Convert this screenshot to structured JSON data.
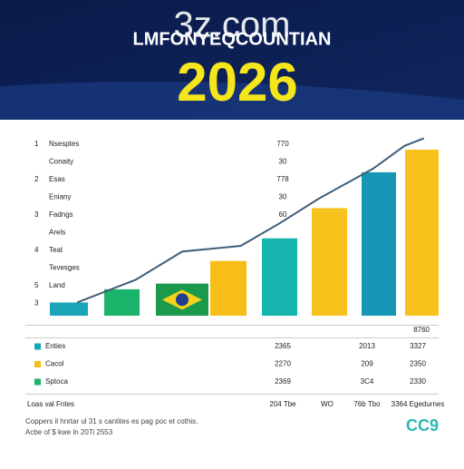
{
  "header": {
    "logo": "3z.com",
    "title": "LMFONYEQCOUNTIAN",
    "year": "2026"
  },
  "chart_data": {
    "type": "bar",
    "categories": [
      null,
      null,
      null,
      null,
      null,
      null,
      null,
      null
    ],
    "values": [
      7,
      14,
      17,
      29,
      41,
      57,
      76,
      88
    ],
    "colors": [
      "#1ba3b8",
      "#1cb36a",
      "#1a9a4a",
      "#f7be1a",
      "#15b5ae",
      "#f8c21c",
      "#1596b5",
      "#f8c21c"
    ],
    "ylim": [
      0,
      100
    ],
    "line": {
      "color": "#3f5d78",
      "x": [
        7,
        22,
        34,
        49,
        59,
        69,
        83,
        91,
        96
      ],
      "values": [
        7,
        19,
        34,
        37,
        49,
        62,
        78,
        90,
        94
      ]
    },
    "xlim": [
      0,
      100
    ],
    "side_labels": [
      {
        "num": "1",
        "label": "Nsesptes",
        "value": "770"
      },
      {
        "num": null,
        "label": "Conaity",
        "value": "30"
      },
      {
        "num": "2",
        "label": "Esas",
        "value": "778"
      },
      {
        "num": null,
        "label": "Eniany",
        "value": "30"
      },
      {
        "num": "3",
        "label": "Fadngs",
        "value": "60"
      },
      {
        "num": null,
        "label": "Arels",
        "value": null
      },
      {
        "num": "4",
        "label": "Teat",
        "value": null
      },
      {
        "num": null,
        "label": "Tevesges",
        "value": null
      },
      {
        "num": "5",
        "label": "Land",
        "value": null
      },
      {
        "num": "3",
        "label": null,
        "value": null
      }
    ],
    "corner_note": "8760"
  },
  "table": {
    "rows": [
      {
        "name": "Enties",
        "color": "#1ba3b8",
        "cells": [
          "2365",
          "2013",
          "3327"
        ]
      },
      {
        "name": "Cacol",
        "color": "#f7be1a",
        "cells": [
          "2270",
          "209",
          "2350"
        ]
      },
      {
        "name": "Sptoca",
        "color": "#1cb36a",
        "cells": [
          "2369",
          "3C4",
          "2330"
        ]
      }
    ],
    "footer_row": {
      "name": "Loas val Fntes",
      "cells": [
        "204 Tbe",
        "WO",
        "76b Tbo",
        "3364 Egedurnes"
      ]
    }
  },
  "footer": {
    "lines": [
      "Coppers il hnrtar ul 31 s cantites es pag poc et cothis.",
      "Acbe of $ kwe ln 20Ti 2553"
    ],
    "brand": "CC9"
  }
}
